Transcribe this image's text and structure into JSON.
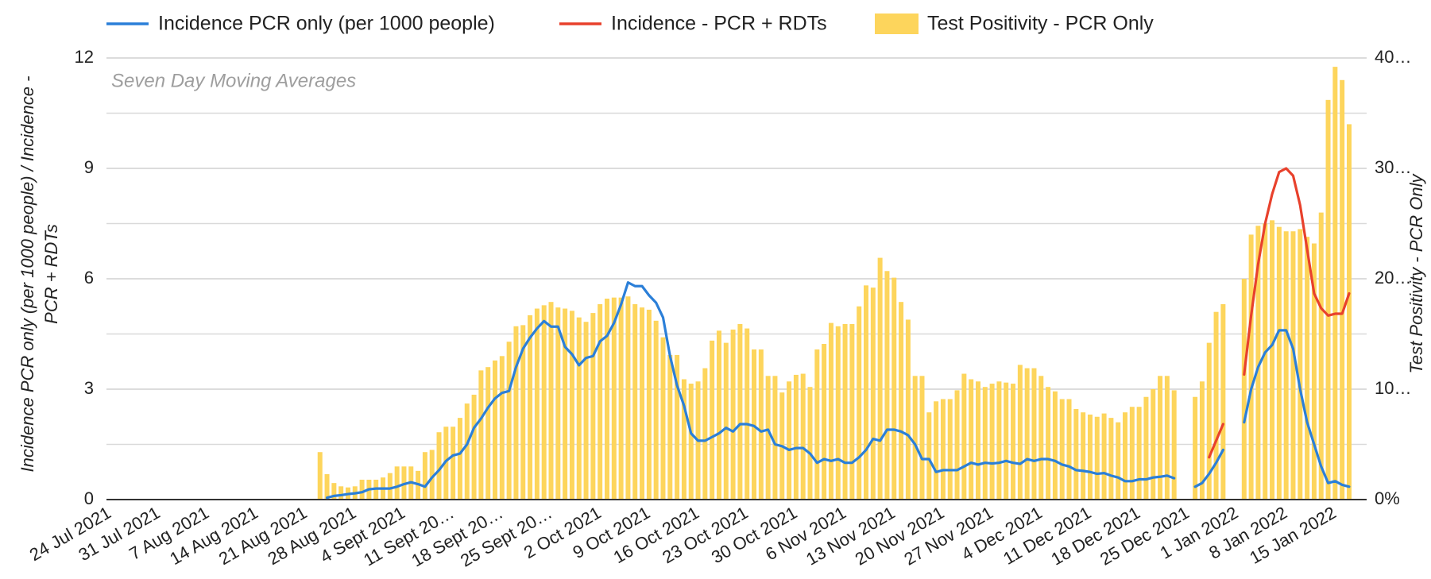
{
  "chart_data": {
    "type": "combo",
    "annotation": "Seven Day Moving Averages",
    "y_label": [
      "Incidence PCR only (per 1000 people) / Incidence -",
      "PCR + RDTs"
    ],
    "y2_label": "Test Positivity - PCR Only",
    "ylim": [
      0,
      12
    ],
    "yticks": [
      0,
      3,
      6,
      9,
      12
    ],
    "minor_yticks": [
      1.5,
      4.5,
      7.5,
      10.5
    ],
    "y2lim": [
      0,
      40
    ],
    "y2ticks": [
      {
        "value": 0,
        "label": "0%"
      },
      {
        "value": 10,
        "label": "10…"
      },
      {
        "value": 20,
        "label": "20…"
      },
      {
        "value": 30,
        "label": "30…"
      },
      {
        "value": 40,
        "label": "40…"
      }
    ],
    "grid": true,
    "legend": "top",
    "categories": [
      "24 Jul 2021",
      null,
      null,
      null,
      null,
      null,
      null,
      "31 Jul 2021",
      null,
      null,
      null,
      null,
      null,
      null,
      "7 Aug 2021",
      null,
      null,
      null,
      null,
      null,
      null,
      "14 Aug 2021",
      null,
      null,
      null,
      null,
      null,
      null,
      "21 Aug 2021",
      null,
      null,
      null,
      null,
      null,
      null,
      "28 Aug 2021",
      null,
      null,
      null,
      null,
      null,
      null,
      "4 Sept 2021",
      null,
      null,
      null,
      null,
      null,
      null,
      "11 Sept 20…",
      null,
      null,
      null,
      null,
      null,
      null,
      "18 Sept 20…",
      null,
      null,
      null,
      null,
      null,
      null,
      "25 Sept 20…",
      null,
      null,
      null,
      null,
      null,
      null,
      "2 Oct 2021",
      null,
      null,
      null,
      null,
      null,
      null,
      "9 Oct 2021",
      null,
      null,
      null,
      null,
      null,
      null,
      "16 Oct 2021",
      null,
      null,
      null,
      null,
      null,
      null,
      "23 Oct 2021",
      null,
      null,
      null,
      null,
      null,
      null,
      "30 Oct 2021",
      null,
      null,
      null,
      null,
      null,
      null,
      "6 Nov 2021",
      null,
      null,
      null,
      null,
      null,
      null,
      "13 Nov 2021",
      null,
      null,
      null,
      null,
      null,
      null,
      "20 Nov 2021",
      null,
      null,
      null,
      null,
      null,
      null,
      "27 Nov 2021",
      null,
      null,
      null,
      null,
      null,
      null,
      "4 Dec 2021",
      null,
      null,
      null,
      null,
      null,
      null,
      "11 Dec 2021",
      null,
      null,
      null,
      null,
      null,
      null,
      "18 Dec 2021",
      null,
      null,
      null,
      null,
      null,
      null,
      "25 Dec 2021",
      null,
      null,
      null,
      null,
      null,
      null,
      "1 Jan 2022",
      null,
      null,
      null,
      null,
      null,
      null,
      "8 Jan 2022",
      null,
      null,
      null,
      null,
      null,
      null,
      "15 Jan 2022",
      null,
      null,
      null,
      null
    ],
    "series": [
      {
        "name": "Incidence PCR only (per 1000 people)",
        "type": "line",
        "color": "#2b7fd8",
        "values": [
          null,
          null,
          null,
          null,
          null,
          null,
          null,
          null,
          null,
          null,
          null,
          null,
          null,
          null,
          null,
          null,
          null,
          null,
          null,
          null,
          null,
          null,
          null,
          null,
          null,
          null,
          null,
          null,
          null,
          null,
          null,
          0.05,
          0.1,
          0.12,
          0.15,
          0.17,
          0.2,
          0.28,
          0.3,
          0.3,
          0.3,
          0.35,
          0.42,
          0.47,
          0.42,
          0.35,
          0.6,
          0.8,
          1.05,
          1.2,
          1.25,
          1.5,
          1.95,
          2.2,
          2.5,
          2.75,
          2.9,
          2.95,
          3.6,
          4.1,
          4.4,
          4.65,
          4.85,
          4.7,
          4.7,
          4.15,
          3.95,
          3.65,
          3.85,
          3.9,
          4.3,
          4.45,
          4.8,
          5.3,
          5.9,
          5.8,
          5.8,
          5.55,
          5.35,
          4.95,
          3.9,
          3.1,
          2.55,
          1.8,
          1.6,
          1.6,
          1.7,
          1.8,
          1.95,
          1.85,
          2.05,
          2.05,
          2.0,
          1.85,
          1.9,
          1.5,
          1.45,
          1.35,
          1.4,
          1.4,
          1.25,
          1.0,
          1.1,
          1.05,
          1.1,
          1.0,
          1.0,
          1.15,
          1.35,
          1.65,
          1.6,
          1.9,
          1.9,
          1.85,
          1.75,
          1.5,
          1.1,
          1.1,
          0.75,
          0.8,
          0.8,
          0.8,
          0.9,
          1.0,
          0.95,
          1.0,
          0.98,
          1.0,
          1.05,
          1.0,
          0.97,
          1.1,
          1.05,
          1.1,
          1.1,
          1.05,
          0.95,
          0.9,
          0.8,
          0.78,
          0.75,
          0.7,
          0.72,
          0.65,
          0.6,
          0.5,
          0.5,
          0.55,
          0.55,
          0.6,
          0.62,
          0.65,
          0.58,
          null,
          null,
          0.35,
          0.45,
          0.7,
          1.0,
          1.35,
          null,
          null,
          2.1,
          3.0,
          3.6,
          4.0,
          4.2,
          4.6,
          4.6,
          4.1,
          3.0,
          2.1,
          1.5,
          0.9,
          0.45,
          0.5,
          0.4,
          0.35,
          null,
          null
        ]
      },
      {
        "name": "Incidence - PCR + RDTs",
        "type": "line",
        "color": "#e8412c",
        "values": [
          null,
          null,
          null,
          null,
          null,
          null,
          null,
          null,
          null,
          null,
          null,
          null,
          null,
          null,
          null,
          null,
          null,
          null,
          null,
          null,
          null,
          null,
          null,
          null,
          null,
          null,
          null,
          null,
          null,
          null,
          null,
          null,
          null,
          null,
          null,
          null,
          null,
          null,
          null,
          null,
          null,
          null,
          null,
          null,
          null,
          null,
          null,
          null,
          null,
          null,
          null,
          null,
          null,
          null,
          null,
          null,
          null,
          null,
          null,
          null,
          null,
          null,
          null,
          null,
          null,
          null,
          null,
          null,
          null,
          null,
          null,
          null,
          null,
          null,
          null,
          null,
          null,
          null,
          null,
          null,
          null,
          null,
          null,
          null,
          null,
          null,
          null,
          null,
          null,
          null,
          null,
          null,
          null,
          null,
          null,
          null,
          null,
          null,
          null,
          null,
          null,
          null,
          null,
          null,
          null,
          null,
          null,
          null,
          null,
          null,
          null,
          null,
          null,
          null,
          null,
          null,
          null,
          null,
          null,
          null,
          null,
          null,
          null,
          null,
          null,
          null,
          null,
          null,
          null,
          null,
          null,
          null,
          null,
          null,
          null,
          null,
          null,
          null,
          null,
          null,
          null,
          null,
          null,
          null,
          null,
          null,
          null,
          null,
          null,
          null,
          null,
          null,
          null,
          null,
          null,
          null,
          null,
          1.15,
          1.6,
          2.05,
          null,
          null,
          3.4,
          5.0,
          6.4,
          7.5,
          8.3,
          8.9,
          9.0,
          8.8,
          8.0,
          6.8,
          5.6,
          5.2,
          5.0,
          5.05,
          5.05,
          5.6,
          null,
          null
        ]
      },
      {
        "name": "Test Positivity - PCR Only",
        "type": "bar",
        "axis": "y2",
        "color": "#fdd55c",
        "values": [
          null,
          null,
          null,
          null,
          null,
          null,
          null,
          null,
          null,
          null,
          null,
          null,
          null,
          null,
          null,
          null,
          null,
          null,
          null,
          null,
          null,
          null,
          null,
          null,
          null,
          null,
          null,
          null,
          null,
          null,
          4.3,
          2.3,
          1.5,
          1.2,
          1.1,
          1.2,
          1.8,
          1.8,
          1.8,
          2.0,
          2.4,
          3.0,
          3.0,
          3.0,
          2.6,
          4.3,
          4.5,
          6.1,
          6.6,
          6.6,
          7.4,
          8.7,
          9.5,
          11.7,
          12.0,
          12.6,
          13.0,
          14.3,
          15.7,
          15.8,
          16.7,
          17.3,
          17.6,
          17.9,
          17.4,
          17.3,
          17.1,
          16.5,
          16.1,
          16.9,
          17.7,
          18.2,
          18.3,
          18.3,
          18.4,
          17.7,
          17.4,
          17.2,
          16.2,
          14.7,
          13.1,
          13.1,
          10.9,
          10.5,
          10.7,
          11.9,
          14.4,
          15.3,
          14.2,
          15.4,
          15.9,
          15.5,
          13.6,
          13.6,
          11.2,
          11.2,
          9.7,
          10.7,
          11.3,
          11.4,
          10.2,
          13.6,
          14.1,
          16.0,
          15.7,
          15.9,
          15.9,
          17.5,
          19.4,
          19.2,
          21.9,
          20.7,
          20.1,
          17.9,
          16.3,
          11.2,
          11.2,
          7.9,
          8.9,
          9.1,
          9.1,
          9.9,
          11.4,
          10.9,
          10.7,
          10.2,
          10.5,
          10.7,
          10.6,
          10.5,
          12.2,
          11.9,
          11.9,
          11.2,
          10.2,
          9.8,
          9.1,
          9.1,
          8.2,
          7.9,
          7.7,
          7.5,
          7.8,
          7.4,
          7.0,
          7.9,
          8.4,
          8.4,
          9.3,
          10.0,
          11.2,
          11.2,
          9.9,
          null,
          null,
          9.3,
          10.7,
          14.2,
          17.0,
          17.7,
          null,
          null,
          20.0,
          24.0,
          24.8,
          25.0,
          25.3,
          24.7,
          24.3,
          24.3,
          24.5,
          23.8,
          23.2,
          26.0,
          36.2,
          39.2,
          38.0,
          34.0,
          null,
          null
        ]
      }
    ]
  }
}
